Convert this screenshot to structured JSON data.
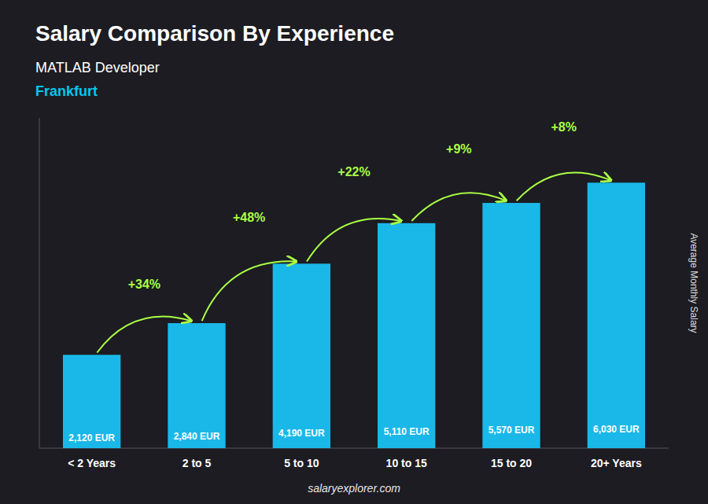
{
  "chart_data": {
    "type": "bar",
    "title": "Salary Comparison By Experience",
    "subtitle": "MATLAB Developer",
    "city": "Frankfurt",
    "city_color": "#00c8f0",
    "ylabel": "Average Monthly Salary",
    "watermark": "salaryexplorer.com",
    "categories": [
      "< 2 Years",
      "2 to 5",
      "5 to 10",
      "10 to 15",
      "15 to 20",
      "20+ Years"
    ],
    "values": [
      2120,
      2840,
      4190,
      5110,
      5570,
      6030
    ],
    "value_labels": [
      "2,120 EUR",
      "2,840 EUR",
      "4,190 EUR",
      "5,110 EUR",
      "5,570 EUR",
      "6,030 EUR"
    ],
    "data_labels": true,
    "annotations": [
      "+34%",
      "+48%",
      "+22%",
      "+9%",
      "+8%"
    ],
    "annotation_color": "#aaff44",
    "color": "#1ab8e8",
    "ylim": [
      0,
      7500
    ],
    "yticks": [],
    "tick_labels": "x",
    "grid": false
  }
}
